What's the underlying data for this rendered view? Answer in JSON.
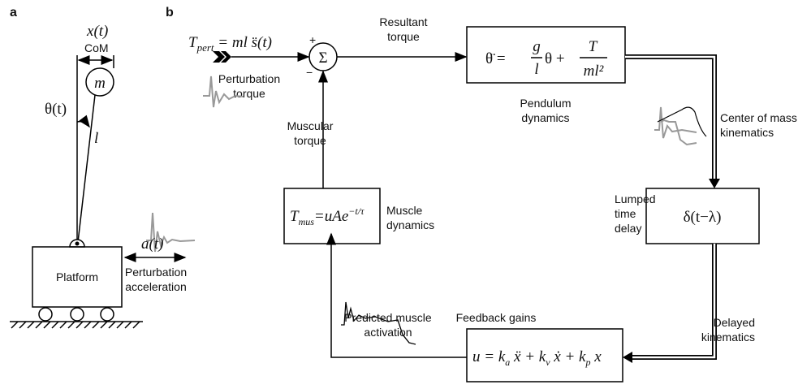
{
  "panel_a": {
    "label": "a",
    "com_x_sym": "x",
    "com_x_arg": "(t)",
    "com": "CoM",
    "mass": "m",
    "angle_sym": "θ",
    "angle_arg": "(t)",
    "length": "l",
    "platform": "Platform",
    "accel_sym": "a",
    "accel_arg": "(t)",
    "accel_caption": [
      "Perturbation",
      "acceleration"
    ]
  },
  "panel_b": {
    "label": "b",
    "perturbation": {
      "T": "T",
      "sub": "pert",
      "rhs": " = ml s̈(t)",
      "caption": [
        "Perturbation",
        "torque"
      ]
    },
    "sum": {
      "symbol": "Σ",
      "plus": "+",
      "minus": "−"
    },
    "resultant": [
      "Resultant",
      "torque"
    ],
    "pendulum": {
      "lhs": "θ̈ = ",
      "g": "g",
      "l": "l",
      "mid": "θ + ",
      "T": "T",
      "ml2": "ml²",
      "caption": [
        "Pendulum",
        "dynamics"
      ]
    },
    "com_kinematics": [
      "Center of mass",
      "kinematics"
    ],
    "delay": {
      "expr": "δ(t−λ)",
      "caption": [
        "Lumped",
        "time",
        "delay"
      ]
    },
    "delayed": [
      "Delayed",
      "kinematics"
    ],
    "feedback": {
      "title": "Feedback gains",
      "u": "u = k",
      "a": "a",
      "p1": " ẍ + k",
      "v": "v",
      "p2": " ẋ + k",
      "p": "p",
      "p3": " x"
    },
    "activation": [
      "Predicted muscle",
      "activation"
    ],
    "muscle": {
      "T": "T",
      "sub": "mus",
      "rhs": "=uAe",
      "exp": "−t/τ",
      "caption": [
        "Muscle",
        "dynamics"
      ]
    },
    "muscular": [
      "Muscular",
      "torque"
    ]
  }
}
